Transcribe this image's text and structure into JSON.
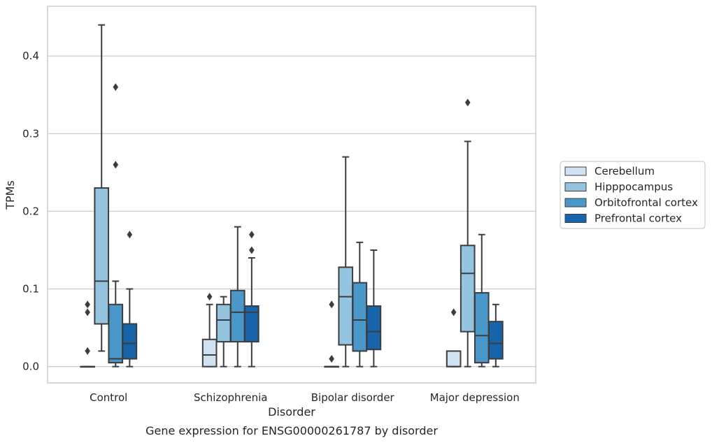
{
  "chart_data": {
    "type": "box",
    "title": "",
    "caption": "Gene expression for ENSG00000261787 by disorder",
    "xlabel": "Disorder",
    "ylabel": "TPMs",
    "ylim": [
      -0.021,
      0.464
    ],
    "yticks": [
      0.0,
      0.1,
      0.2,
      0.3,
      0.4
    ],
    "ytick_labels": [
      "0.0",
      "0.1",
      "0.2",
      "0.3",
      "0.4"
    ],
    "grid": true,
    "legend_position": "right",
    "categories": [
      "Control",
      "Schizophrenia",
      "Bipolar disorder",
      "Major depression"
    ],
    "series": [
      {
        "name": "Cerebellum",
        "color": "#d0e1f2",
        "boxes": [
          {
            "whislo": 0.0,
            "q1": 0.0,
            "med": 0.0,
            "q3": 0.0,
            "whishi": 0.0,
            "fliers": [
              0.02,
              0.07,
              0.08
            ]
          },
          {
            "whislo": 0.0,
            "q1": 0.0,
            "med": 0.015,
            "q3": 0.035,
            "whishi": 0.08,
            "fliers": [
              0.09
            ]
          },
          {
            "whislo": 0.0,
            "q1": 0.0,
            "med": 0.0,
            "q3": 0.0,
            "whishi": 0.0,
            "fliers": [
              0.01,
              0.08
            ]
          },
          {
            "whislo": 0.0,
            "q1": 0.0,
            "med": 0.0,
            "q3": 0.02,
            "whishi": 0.02,
            "fliers": [
              0.07
            ]
          }
        ]
      },
      {
        "name": "Hipppocampus",
        "color": "#94c4df",
        "boxes": [
          {
            "whislo": 0.02,
            "q1": 0.055,
            "med": 0.11,
            "q3": 0.23,
            "whishi": 0.44,
            "fliers": []
          },
          {
            "whislo": 0.0,
            "q1": 0.032,
            "med": 0.06,
            "q3": 0.08,
            "whishi": 0.09,
            "fliers": []
          },
          {
            "whislo": 0.0,
            "q1": 0.028,
            "med": 0.09,
            "q3": 0.128,
            "whishi": 0.27,
            "fliers": []
          },
          {
            "whislo": 0.0,
            "q1": 0.045,
            "med": 0.12,
            "q3": 0.156,
            "whishi": 0.29,
            "fliers": [
              0.34
            ]
          }
        ]
      },
      {
        "name": "Orbitofrontal cortex",
        "color": "#4a98c9",
        "boxes": [
          {
            "whislo": 0.0,
            "q1": 0.005,
            "med": 0.01,
            "q3": 0.08,
            "whishi": 0.11,
            "fliers": [
              0.26,
              0.36
            ]
          },
          {
            "whislo": 0.0,
            "q1": 0.032,
            "med": 0.07,
            "q3": 0.098,
            "whishi": 0.18,
            "fliers": []
          },
          {
            "whislo": 0.0,
            "q1": 0.02,
            "med": 0.06,
            "q3": 0.108,
            "whishi": 0.16,
            "fliers": []
          },
          {
            "whislo": 0.0,
            "q1": 0.005,
            "med": 0.04,
            "q3": 0.095,
            "whishi": 0.17,
            "fliers": []
          }
        ]
      },
      {
        "name": "Prefrontal cortex",
        "color": "#1764ab",
        "boxes": [
          {
            "whislo": 0.0,
            "q1": 0.01,
            "med": 0.03,
            "q3": 0.055,
            "whishi": 0.1,
            "fliers": [
              0.17
            ]
          },
          {
            "whislo": 0.0,
            "q1": 0.032,
            "med": 0.07,
            "q3": 0.078,
            "whishi": 0.14,
            "fliers": [
              0.15,
              0.17
            ]
          },
          {
            "whislo": 0.0,
            "q1": 0.022,
            "med": 0.045,
            "q3": 0.078,
            "whishi": 0.15,
            "fliers": []
          },
          {
            "whislo": 0.0,
            "q1": 0.01,
            "med": 0.03,
            "q3": 0.058,
            "whishi": 0.08,
            "fliers": []
          }
        ]
      }
    ]
  }
}
